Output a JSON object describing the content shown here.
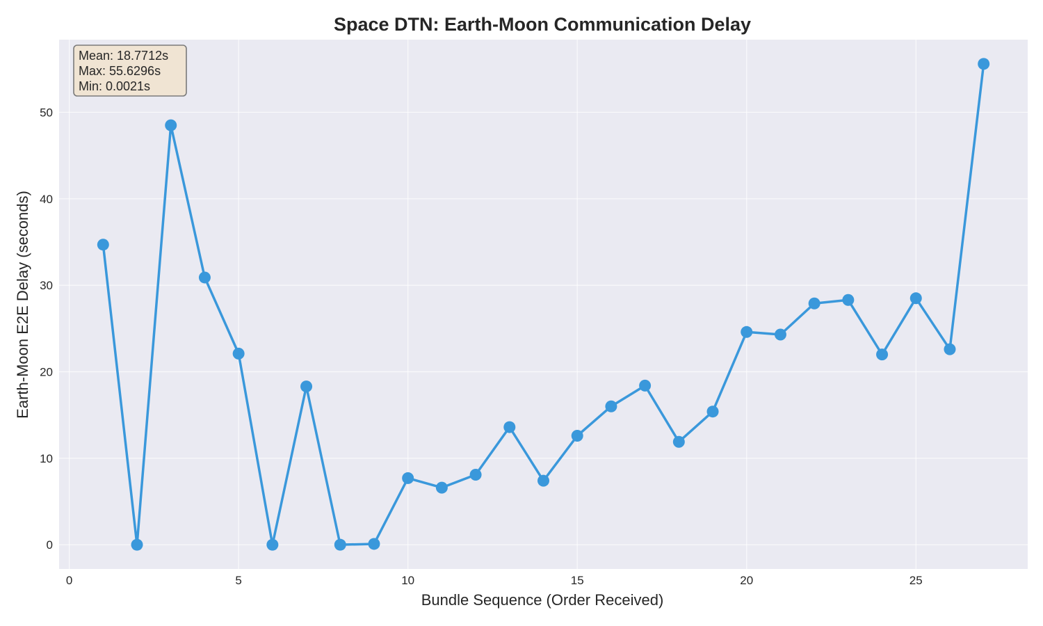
{
  "chart_data": {
    "type": "line",
    "title": "Space DTN: Earth-Moon Communication Delay",
    "xlabel": "Bundle Sequence (Order Received)",
    "ylabel": "Earth-Moon E2E Delay (seconds)",
    "xlim": [
      -0.3,
      28.3
    ],
    "ylim": [
      -2.8,
      58.4
    ],
    "x_ticks": [
      0,
      5,
      10,
      15,
      20,
      25
    ],
    "y_ticks": [
      0,
      10,
      20,
      30,
      40,
      50
    ],
    "grid": true,
    "line_color": "#3a98db",
    "background_color": "#eaeaf2",
    "series": [
      {
        "x": [
          1,
          2,
          3,
          4,
          5,
          6,
          7,
          8,
          9,
          10,
          11,
          12,
          13,
          14,
          15,
          16,
          17,
          18,
          19,
          20,
          21,
          22,
          23,
          24,
          25,
          26,
          27
        ],
        "values": [
          34.7,
          0.0,
          48.5,
          30.9,
          22.1,
          0.0,
          18.3,
          0.0,
          0.1,
          7.7,
          6.6,
          8.1,
          13.6,
          7.4,
          12.6,
          16.0,
          18.4,
          11.9,
          15.4,
          24.6,
          24.3,
          27.9,
          28.3,
          22.0,
          28.5,
          22.6,
          55.6
        ]
      }
    ],
    "annotation": {
      "placement": "top-left",
      "lines": [
        "Mean: 18.7712s",
        "Max: 55.6296s",
        "Min: 0.0021s"
      ]
    }
  }
}
